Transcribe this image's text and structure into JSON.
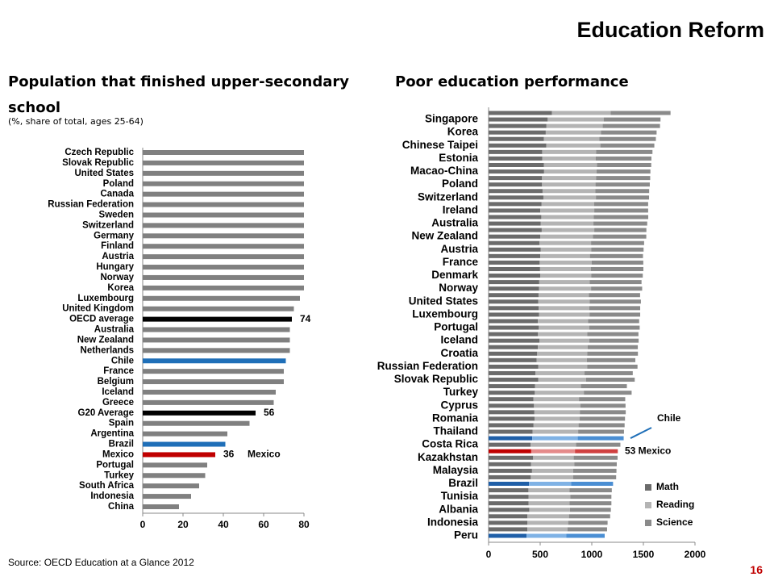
{
  "header": {
    "title": "Education Reform"
  },
  "footer": {
    "source": "Source: OECD Education at a Glance 2012",
    "page": "16"
  },
  "chart_data": [
    {
      "type": "hbar",
      "title": "Population that finished upper-secondary school",
      "subtitle": "(%, share of total, ages 25-64)",
      "categories": [
        "Czech Republic",
        "Slovak Republic",
        "United States",
        "Poland",
        "Canada",
        "Russian Federation",
        "Sweden",
        "Switzerland",
        "Germany",
        "Finland",
        "Austria",
        "Hungary",
        "Norway",
        "Korea",
        "Luxembourg",
        "United Kingdom",
        "OECD average",
        "Australia",
        "New Zealand",
        "Netherlands",
        "Chile",
        "France",
        "Belgium",
        "Iceland",
        "Greece",
        "G20 Average",
        "Spain",
        "Argentina",
        "Brazil",
        "Mexico",
        "Portugal",
        "Turkey",
        "South Africa",
        "Indonesia",
        "China"
      ],
      "values": [
        80,
        80,
        80,
        80,
        80,
        80,
        80,
        80,
        80,
        80,
        80,
        80,
        80,
        80,
        78,
        75,
        74,
        73,
        73,
        73,
        71,
        70,
        70,
        66,
        65,
        56,
        53,
        42,
        41,
        36,
        32,
        31,
        28,
        24,
        18
      ],
      "value_labels": [
        null,
        null,
        null,
        null,
        null,
        null,
        null,
        null,
        null,
        null,
        null,
        null,
        null,
        null,
        null,
        null,
        "74",
        null,
        null,
        null,
        null,
        null,
        null,
        null,
        null,
        "56",
        null,
        null,
        null,
        "36",
        null,
        null,
        null,
        null,
        null
      ],
      "colors": [
        "#808080",
        "#808080",
        "#808080",
        "#808080",
        "#808080",
        "#808080",
        "#808080",
        "#808080",
        "#808080",
        "#808080",
        "#808080",
        "#808080",
        "#808080",
        "#808080",
        "#808080",
        "#808080",
        "#000000",
        "#808080",
        "#808080",
        "#808080",
        "#1f6fb8",
        "#808080",
        "#808080",
        "#808080",
        "#808080",
        "#000000",
        "#808080",
        "#808080",
        "#1f6fb8",
        "#c00000",
        "#808080",
        "#808080",
        "#808080",
        "#808080",
        "#808080"
      ],
      "annotations": [
        {
          "text": "Mexico",
          "category": "Mexico"
        }
      ],
      "xlim": [
        0,
        80
      ],
      "xticks": [
        0,
        20,
        40,
        60,
        80
      ]
    },
    {
      "type": "stacked_hbar",
      "title": "Poor education performance",
      "categories": [
        null,
        "Singapore",
        null,
        "Korea",
        null,
        "Chinese Taipei",
        null,
        "Estonia",
        null,
        "Macao-China",
        null,
        "Poland",
        null,
        "Switzerland",
        null,
        "Ireland",
        null,
        "Australia",
        null,
        "New Zealand",
        null,
        "Austria",
        null,
        "France",
        null,
        "Denmark",
        null,
        "Norway",
        null,
        "United States",
        null,
        "Luxembourg",
        null,
        "Portugal",
        null,
        "Iceland",
        null,
        "Croatia",
        null,
        "Russian Federation",
        null,
        "Slovak Republic",
        null,
        "Turkey",
        null,
        "Cyprus",
        null,
        "Romania",
        null,
        "Thailand",
        null,
        "Costa Rica",
        null,
        "Kazakhstan",
        null,
        "Malaysia",
        null,
        "Brazil",
        null,
        "Tunisia",
        null,
        "Albania",
        null,
        "Indonesia",
        null,
        "Peru"
      ],
      "series": [
        {
          "name": "Math",
          "color": "#6b6b6b",
          "values": [
            613,
            573,
            561,
            554,
            536,
            560,
            519,
            521,
            535,
            538,
            518,
            518,
            523,
            531,
            514,
            501,
            511,
            504,
            515,
            500,
            494,
            506,
            501,
            495,
            499,
            500,
            491,
            489,
            484,
            481,
            485,
            490,
            477,
            487,
            479,
            493,
            478,
            471,
            466,
            482,
            453,
            482,
            449,
            448,
            434,
            440,
            444,
            445,
            436,
            427,
            423,
            407,
            413,
            432,
            410,
            421,
            409,
            391,
            386,
            388,
            388,
            394,
            376,
            375,
            376,
            368
          ]
        },
        {
          "name": "Reading",
          "color": "#b4b4b4",
          "values": [
            570,
            542,
            545,
            536,
            538,
            523,
            524,
            516,
            516,
            509,
            523,
            518,
            511,
            509,
            508,
            523,
            508,
            512,
            509,
            512,
            499,
            490,
            481,
            505,
            493,
            496,
            489,
            504,
            488,
            498,
            490,
            488,
            488,
            488,
            477,
            483,
            483,
            485,
            486,
            475,
            477,
            463,
            446,
            475,
            442,
            449,
            440,
            438,
            436,
            441,
            441,
            441,
            424,
            393,
            422,
            398,
            411,
            410,
            399,
            404,
            396,
            394,
            403,
            396,
            388,
            384
          ]
        },
        {
          "name": "Science",
          "color": "#8a8a8a",
          "values": [
            580,
            551,
            555,
            538,
            547,
            523,
            545,
            541,
            525,
            521,
            525,
            526,
            522,
            515,
            524,
            522,
            528,
            521,
            505,
            516,
            514,
            506,
            514,
            499,
            508,
            498,
            502,
            495,
            496,
            497,
            494,
            491,
            494,
            489,
            496,
            478,
            485,
            491,
            470,
            486,
            467,
            471,
            445,
            463,
            448,
            438,
            445,
            439,
            446,
            444,
            445,
            429,
            415,
            425,
            410,
            420,
            416,
            405,
            409,
            398,
            406,
            397,
            399,
            382,
            384,
            373
          ]
        }
      ],
      "highlights": [
        {
          "index": 50,
          "label": "Chile",
          "colors": [
            "#1f5fa8",
            "#7fb2e5",
            "#4a8ed3"
          ]
        },
        {
          "index": 52,
          "label": "53 Mexico",
          "colors": [
            "#c00000",
            "#e58a8a",
            "#d04040"
          ]
        },
        {
          "index": 57,
          "colors": [
            "#1f5fa8",
            "#7fb2e5",
            "#4a8ed3"
          ]
        },
        {
          "index": 65,
          "colors": [
            "#1f5fa8",
            "#7fb2e5",
            "#4a8ed3"
          ]
        }
      ],
      "legend": "bottom-right",
      "xlim": [
        0,
        2000
      ],
      "xticks": [
        0,
        500,
        1000,
        1500,
        2000
      ]
    }
  ]
}
